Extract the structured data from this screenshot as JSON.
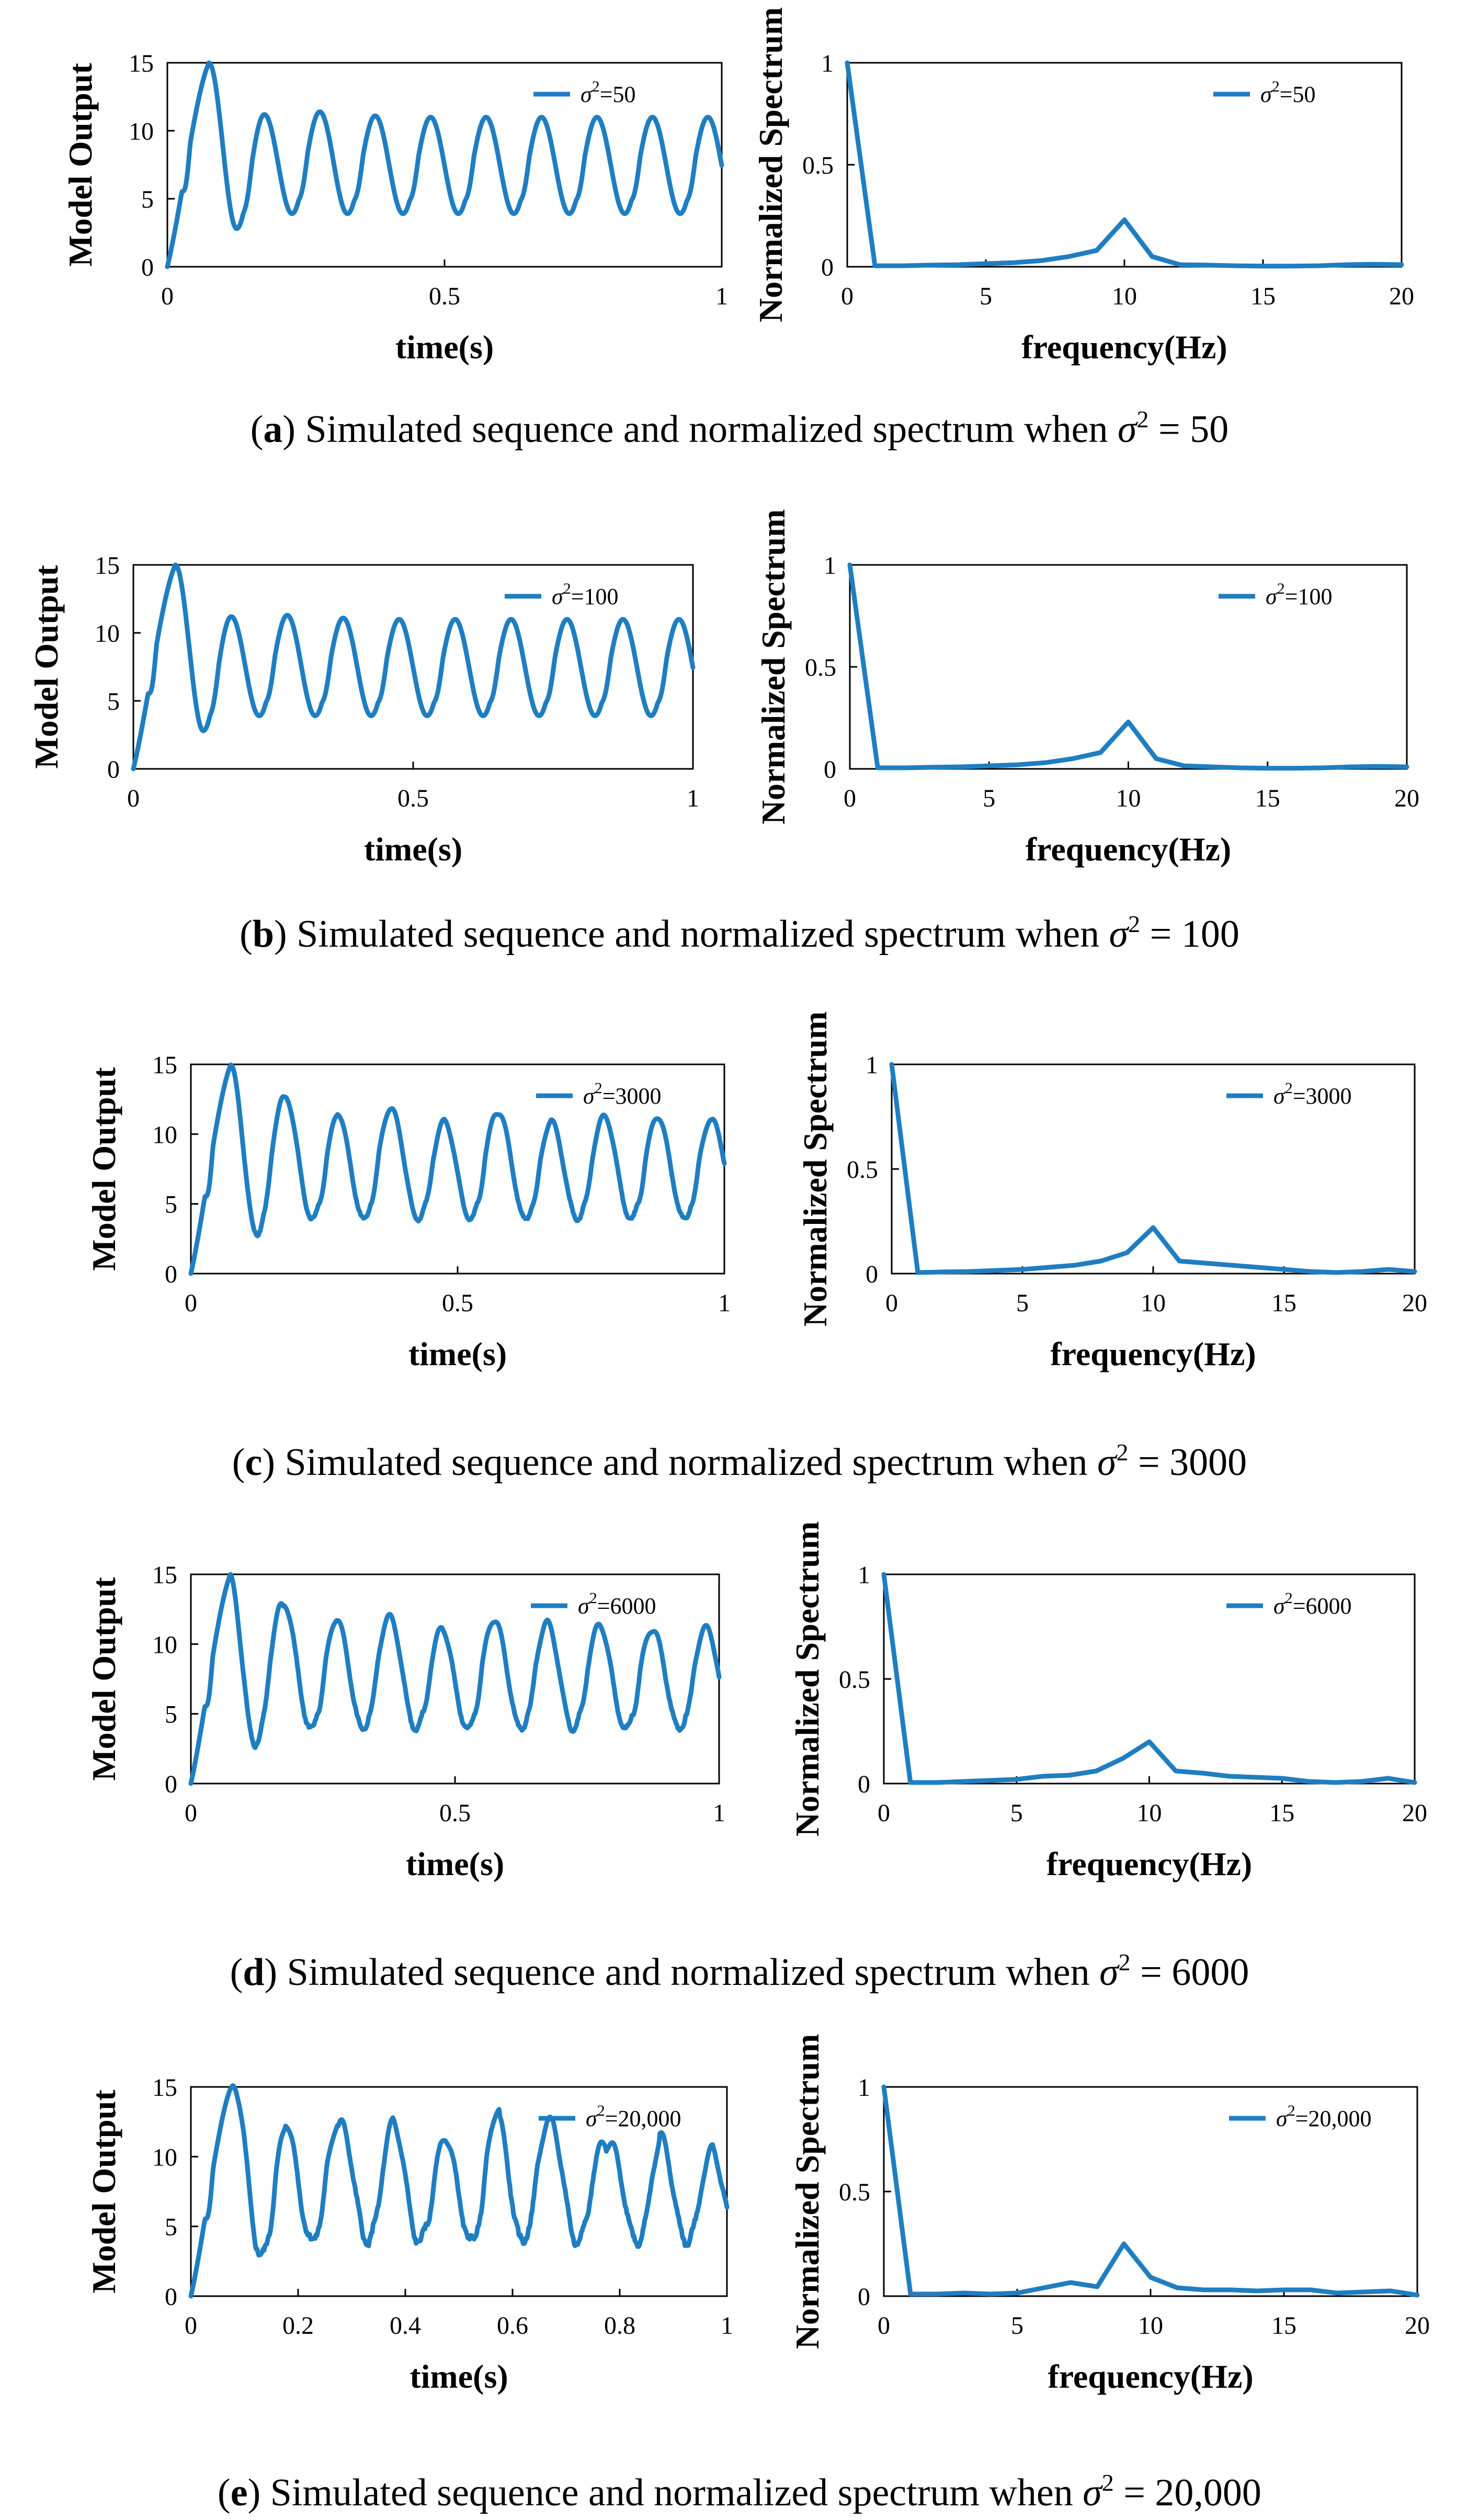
{
  "chart_data": [
    {
      "id": "a",
      "caption": {
        "letter": "a",
        "text": ") Simulated sequence and normalized spectrum when ",
        "sym": "σ",
        "sup": "2",
        "value": " = 50"
      },
      "time_plot": {
        "type": "line",
        "xlabel": "time(s)",
        "ylabel": "Model Output",
        "xlim": [
          0,
          1
        ],
        "ylim": [
          0,
          15
        ],
        "xticks": [
          0,
          0.5,
          1
        ],
        "xtick_labels": [
          "0",
          "0.5",
          "1"
        ],
        "yticks": [
          0,
          5,
          10,
          15
        ],
        "ytick_labels": [
          "0",
          "5",
          "10",
          "15"
        ],
        "series": [
          {
            "name": "σ²=50",
            "legend_base": "σ",
            "legend_sup": "2",
            "legend_value": "=50",
            "amps": [
              11.2,
              11.4,
              11.1,
              11.0,
              11.0,
              11.0,
              11.0,
              11.0,
              11.0
            ],
            "seed": 1,
            "noise": 0
          }
        ]
      },
      "spectrum_plot": {
        "type": "line",
        "xlabel": "frequency(Hz)",
        "ylabel": "Normalized Spectrum",
        "xlim": [
          0,
          20
        ],
        "ylim": [
          0,
          1
        ],
        "xticks": [
          0,
          5,
          10,
          15,
          20
        ],
        "xtick_labels": [
          "0",
          "5",
          "10",
          "15",
          "20"
        ],
        "yticks": [
          0,
          0.5,
          1
        ],
        "ytick_labels": [
          "0",
          "0.5",
          "1"
        ],
        "series": [
          {
            "name": "σ²=50",
            "legend_base": "σ",
            "legend_sup": "2",
            "legend_value": "=50",
            "x": [
              0,
              1,
              2,
              3,
              4,
              5,
              6,
              7,
              8,
              9,
              10,
              11,
              12,
              13,
              14,
              15,
              16,
              17,
              18,
              19,
              20
            ],
            "y": [
              1.0,
              0.005,
              0.005,
              0.008,
              0.01,
              0.015,
              0.02,
              0.03,
              0.05,
              0.08,
              0.23,
              0.05,
              0.01,
              0.008,
              0.005,
              0.003,
              0.003,
              0.005,
              0.01,
              0.012,
              0.01
            ]
          }
        ]
      }
    },
    {
      "id": "b",
      "caption": {
        "letter": "b",
        "text": ") Simulated sequence and normalized spectrum when ",
        "sym": "σ",
        "sup": "2",
        "value": " = 100"
      },
      "time_plot": {
        "type": "line",
        "xlabel": "time(s)",
        "ylabel": "Model Output",
        "xlim": [
          0,
          1
        ],
        "ylim": [
          0,
          15
        ],
        "xticks": [
          0,
          0.5,
          1
        ],
        "xtick_labels": [
          "0",
          "0.5",
          "1"
        ],
        "yticks": [
          0,
          5,
          10,
          15
        ],
        "ytick_labels": [
          "0",
          "5",
          "10",
          "15"
        ],
        "series": [
          {
            "name": "σ²=100",
            "legend_base": "σ",
            "legend_sup": "2",
            "legend_value": "=100",
            "amps": [
              11.2,
              11.3,
              11.1,
              11.0,
              11.0,
              11.0,
              11.0,
              11.0,
              11.0
            ],
            "seed": 2,
            "noise": 0
          }
        ]
      },
      "spectrum_plot": {
        "type": "line",
        "xlabel": "frequency(Hz)",
        "ylabel": "Normalized Spectrum",
        "xlim": [
          0,
          20
        ],
        "ylim": [
          0,
          1
        ],
        "xticks": [
          0,
          5,
          10,
          15,
          20
        ],
        "xtick_labels": [
          "0",
          "5",
          "10",
          "15",
          "20"
        ],
        "yticks": [
          0,
          0.5,
          1
        ],
        "ytick_labels": [
          "0",
          "0.5",
          "1"
        ],
        "series": [
          {
            "name": "σ²=100",
            "legend_base": "σ",
            "legend_sup": "2",
            "legend_value": "=100",
            "x": [
              0,
              1,
              2,
              3,
              4,
              5,
              6,
              7,
              8,
              9,
              10,
              11,
              12,
              13,
              14,
              15,
              16,
              17,
              18,
              19,
              20
            ],
            "y": [
              1.0,
              0.005,
              0.005,
              0.008,
              0.01,
              0.015,
              0.02,
              0.03,
              0.05,
              0.08,
              0.23,
              0.05,
              0.015,
              0.01,
              0.005,
              0.003,
              0.003,
              0.005,
              0.01,
              0.012,
              0.01
            ]
          }
        ]
      }
    },
    {
      "id": "c",
      "caption": {
        "letter": "c",
        "text": ") Simulated sequence and normalized spectrum when ",
        "sym": "σ",
        "sup": "2",
        "value": " = 3000"
      },
      "time_plot": {
        "type": "line",
        "xlabel": "time(s)",
        "ylabel": "Model Output",
        "xlim": [
          0,
          1
        ],
        "ylim": [
          0,
          15
        ],
        "xticks": [
          0,
          0.5,
          1
        ],
        "xtick_labels": [
          "0",
          "0.5",
          "1"
        ],
        "yticks": [
          0,
          5,
          10,
          15
        ],
        "ytick_labels": [
          "0",
          "5",
          "10",
          "15"
        ],
        "series": [
          {
            "name": "σ²=3000",
            "legend_base": "σ",
            "legend_sup": "2",
            "legend_value": "=3000",
            "amps": [
              12.6,
              11.5,
              11.8,
              11.0,
              11.5,
              11.0,
              11.3,
              11.2,
              11.0
            ],
            "seed": 3,
            "noise": 0.4
          }
        ]
      },
      "spectrum_plot": {
        "type": "line",
        "xlabel": "frequency(Hz)",
        "ylabel": "Normalized Spectrum",
        "xlim": [
          0,
          20
        ],
        "ylim": [
          0,
          1
        ],
        "xticks": [
          0,
          5,
          10,
          15,
          20
        ],
        "xtick_labels": [
          "0",
          "5",
          "10",
          "15",
          "20"
        ],
        "yticks": [
          0,
          0.5,
          1
        ],
        "ytick_labels": [
          "0",
          "0.5",
          "1"
        ],
        "series": [
          {
            "name": "σ²=3000",
            "legend_base": "σ",
            "legend_sup": "2",
            "legend_value": "=3000",
            "x": [
              0,
              1,
              2,
              3,
              4,
              5,
              6,
              7,
              8,
              9,
              10,
              11,
              12,
              13,
              14,
              15,
              16,
              17,
              18,
              19,
              20
            ],
            "y": [
              1.0,
              0.005,
              0.008,
              0.01,
              0.015,
              0.02,
              0.03,
              0.04,
              0.06,
              0.1,
              0.22,
              0.06,
              0.05,
              0.04,
              0.03,
              0.02,
              0.01,
              0.005,
              0.01,
              0.02,
              0.01
            ]
          }
        ]
      }
    },
    {
      "id": "d",
      "caption": {
        "letter": "d",
        "text": ") Simulated sequence and normalized spectrum when ",
        "sym": "σ",
        "sup": "2",
        "value": " = 6000"
      },
      "time_plot": {
        "type": "line",
        "xlabel": "time(s)",
        "ylabel": "Model Output",
        "xlim": [
          0,
          1
        ],
        "ylim": [
          0,
          15
        ],
        "xticks": [
          0,
          0.5,
          1
        ],
        "xtick_labels": [
          "0",
          "0.5",
          "1"
        ],
        "yticks": [
          0,
          5,
          10,
          15
        ],
        "ytick_labels": [
          "0",
          "5",
          "10",
          "15"
        ],
        "series": [
          {
            "name": "σ²=6000",
            "legend_base": "σ",
            "legend_sup": "2",
            "legend_value": "=6000",
            "amps": [
              12.8,
              11.8,
              12.0,
              11.2,
              11.7,
              11.6,
              11.4,
              11.0,
              11.2
            ],
            "seed": 4,
            "noise": 0.6
          }
        ]
      },
      "spectrum_plot": {
        "type": "line",
        "xlabel": "frequency(Hz)",
        "ylabel": "Normalized Spectrum",
        "xlim": [
          0,
          20
        ],
        "ylim": [
          0,
          1
        ],
        "xticks": [
          0,
          5,
          10,
          15,
          20
        ],
        "xtick_labels": [
          "0",
          "5",
          "10",
          "15",
          "20"
        ],
        "yticks": [
          0,
          0.5,
          1
        ],
        "ytick_labels": [
          "0",
          "0.5",
          "1"
        ],
        "series": [
          {
            "name": "σ²=6000",
            "legend_base": "σ",
            "legend_sup": "2",
            "legend_value": "=6000",
            "x": [
              0,
              1,
              2,
              3,
              4,
              5,
              6,
              7,
              8,
              9,
              10,
              11,
              12,
              13,
              14,
              15,
              16,
              17,
              18,
              19,
              20
            ],
            "y": [
              1.0,
              0.005,
              0.005,
              0.01,
              0.015,
              0.02,
              0.035,
              0.04,
              0.06,
              0.12,
              0.2,
              0.06,
              0.05,
              0.035,
              0.03,
              0.025,
              0.01,
              0.005,
              0.01,
              0.025,
              0.005
            ]
          }
        ]
      }
    },
    {
      "id": "e",
      "caption": {
        "letter": "e",
        "text": ") Simulated sequence and normalized spectrum when ",
        "sym": "σ",
        "sup": "2",
        "value": " = 20,000"
      },
      "time_plot": {
        "type": "line",
        "xlabel": "time(s)",
        "ylabel": "Model Output",
        "xlim": [
          0,
          1
        ],
        "ylim": [
          0,
          15
        ],
        "xticks": [
          0,
          0.2,
          0.4,
          0.6,
          0.8,
          1
        ],
        "xtick_labels": [
          "0",
          "0.2",
          "0.4",
          "0.6",
          "0.8",
          "1"
        ],
        "yticks": [
          0,
          5,
          10,
          15
        ],
        "ytick_labels": [
          "0",
          "5",
          "10",
          "15"
        ],
        "series": [
          {
            "name": "σ²=20,000",
            "legend_base": "σ",
            "legend_sup": "2",
            "legend_value": "=20,000",
            "amps": [
              12.5,
              12.4,
              12.6,
              11.4,
              13.4,
              12.6,
              11.0,
              11.6,
              10.6
            ],
            "seed": 5,
            "noise": 1.2
          }
        ]
      },
      "spectrum_plot": {
        "type": "line",
        "xlabel": "frequency(Hz)",
        "ylabel": "Normalized Spectrum",
        "xlim": [
          0,
          20
        ],
        "ylim": [
          0,
          1
        ],
        "xticks": [
          0,
          5,
          10,
          15,
          20
        ],
        "xtick_labels": [
          "0",
          "5",
          "10",
          "15",
          "20"
        ],
        "yticks": [
          0,
          0.5,
          1
        ],
        "ytick_labels": [
          "0",
          "0.5",
          "1"
        ],
        "series": [
          {
            "name": "σ²=20,000",
            "legend_base": "σ",
            "legend_sup": "2",
            "legend_value": "=20,000",
            "x": [
              0,
              1,
              2,
              3,
              4,
              5,
              6,
              7,
              8,
              9,
              10,
              11,
              12,
              13,
              14,
              15,
              16,
              17,
              18,
              19,
              20
            ],
            "y": [
              1.0,
              0.01,
              0.01,
              0.015,
              0.01,
              0.015,
              0.04,
              0.065,
              0.045,
              0.25,
              0.09,
              0.04,
              0.03,
              0.03,
              0.025,
              0.03,
              0.03,
              0.015,
              0.02,
              0.025,
              0.005
            ]
          }
        ]
      }
    }
  ]
}
